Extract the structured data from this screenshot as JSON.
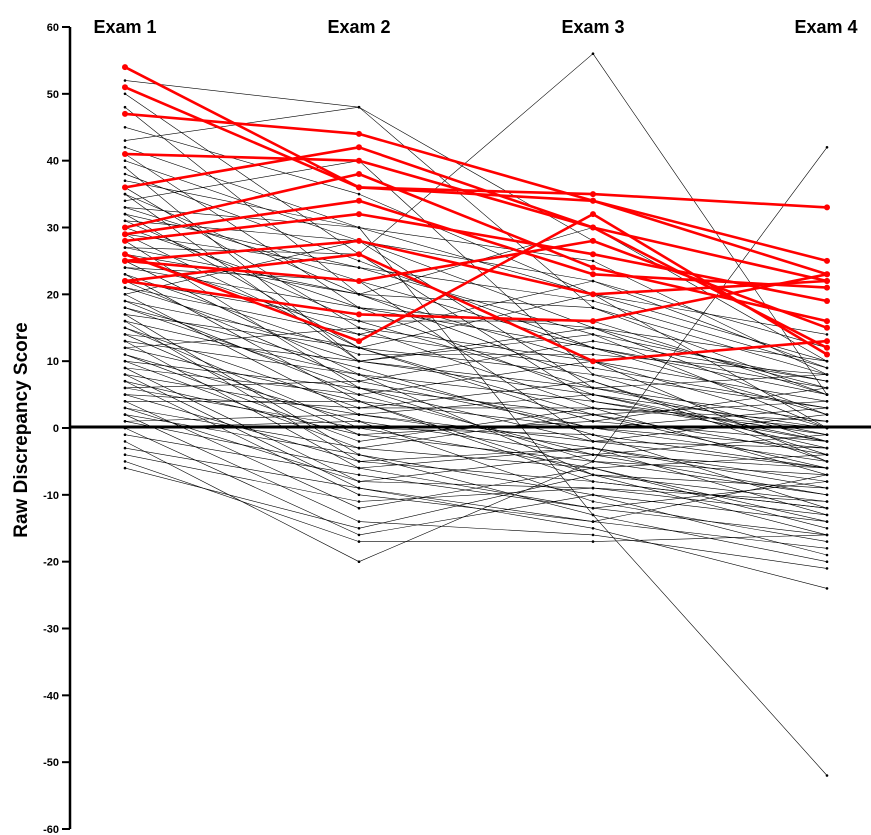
{
  "chart_data": {
    "type": "line",
    "title": "",
    "xlabel": "",
    "ylabel": "Raw Discrepancy Score",
    "categories": [
      "Exam 1",
      "Exam 2",
      "Exam 3",
      "Exam 4"
    ],
    "ylim": [
      -60,
      60
    ],
    "yticks": [
      60,
      50,
      40,
      30,
      20,
      10,
      0,
      -10,
      -20,
      -30,
      -40,
      -50,
      -60
    ],
    "zero_line": true,
    "grid": false,
    "legend": "none",
    "colors": {
      "highlight": "#ff0000",
      "normal": "#000000"
    },
    "highlighted_series": [
      {
        "values": [
          54,
          36,
          34,
          23
        ]
      },
      {
        "values": [
          51,
          36,
          35,
          33
        ]
      },
      {
        "values": [
          47,
          44,
          34,
          25
        ]
      },
      {
        "values": [
          41,
          40,
          30,
          22
        ]
      },
      {
        "values": [
          36,
          42,
          30,
          12
        ]
      },
      {
        "values": [
          30,
          38,
          24,
          16
        ]
      },
      {
        "values": [
          29,
          34,
          23,
          21
        ]
      },
      {
        "values": [
          28,
          32,
          26,
          19
        ]
      },
      {
        "values": [
          26,
          13,
          32,
          11
        ]
      },
      {
        "values": [
          25,
          28,
          20,
          22
        ]
      },
      {
        "values": [
          25,
          22,
          28,
          15
        ]
      },
      {
        "values": [
          22,
          26,
          10,
          13
        ]
      },
      {
        "values": [
          22,
          17,
          16,
          23
        ]
      }
    ],
    "other_series": [
      {
        "values": [
          52,
          48,
          28,
          15
        ]
      },
      {
        "values": [
          50,
          26,
          56,
          5
        ]
      },
      {
        "values": [
          48,
          20,
          30,
          10
        ]
      },
      {
        "values": [
          45,
          35,
          20,
          0
        ]
      },
      {
        "values": [
          43,
          48,
          18,
          5
        ]
      },
      {
        "values": [
          42,
          30,
          25,
          8
        ]
      },
      {
        "values": [
          41,
          18,
          15,
          2
        ]
      },
      {
        "values": [
          40,
          28,
          22,
          12
        ]
      },
      {
        "values": [
          39,
          10,
          5,
          -2
        ]
      },
      {
        "values": [
          38,
          25,
          12,
          6
        ]
      },
      {
        "values": [
          37,
          30,
          20,
          10
        ]
      },
      {
        "values": [
          36,
          15,
          10,
          -5
        ]
      },
      {
        "values": [
          35,
          20,
          18,
          8
        ]
      },
      {
        "values": [
          34,
          40,
          8,
          3
        ]
      },
      {
        "values": [
          33,
          22,
          12,
          5
        ]
      },
      {
        "values": [
          32,
          12,
          2,
          -6
        ]
      },
      {
        "values": [
          31,
          28,
          15,
          10
        ]
      },
      {
        "values": [
          30,
          18,
          5,
          0
        ]
      },
      {
        "values": [
          29,
          24,
          14,
          7
        ]
      },
      {
        "values": [
          28,
          6,
          -5,
          -10
        ]
      },
      {
        "values": [
          27,
          20,
          10,
          4
        ]
      },
      {
        "values": [
          26,
          14,
          22,
          9
        ]
      },
      {
        "values": [
          25,
          8,
          0,
          -3
        ]
      },
      {
        "values": [
          24,
          18,
          12,
          2
        ]
      },
      {
        "values": [
          23,
          4,
          -8,
          -12
        ]
      },
      {
        "values": [
          22,
          16,
          6,
          1
        ]
      },
      {
        "values": [
          21,
          10,
          15,
          6
        ]
      },
      {
        "values": [
          20,
          2,
          -3,
          -8
        ]
      },
      {
        "values": [
          19,
          12,
          8,
          -2
        ]
      },
      {
        "values": [
          18,
          6,
          2,
          4
        ]
      },
      {
        "values": [
          17,
          -4,
          -10,
          -14
        ]
      },
      {
        "values": [
          16,
          8,
          4,
          -1
        ]
      },
      {
        "values": [
          15,
          0,
          -6,
          -4
        ]
      },
      {
        "values": [
          14,
          10,
          6,
          8
        ]
      },
      {
        "values": [
          13,
          -6,
          -12,
          -16
        ]
      },
      {
        "values": [
          12,
          4,
          0,
          -5
        ]
      },
      {
        "values": [
          11,
          -2,
          3,
          -7
        ]
      },
      {
        "values": [
          10,
          6,
          -2,
          2
        ]
      },
      {
        "values": [
          9,
          -8,
          -4,
          -10
        ]
      },
      {
        "values": [
          8,
          2,
          5,
          -3
        ]
      },
      {
        "values": [
          7,
          -10,
          -14,
          -18
        ]
      },
      {
        "values": [
          6,
          0,
          -1,
          -6
        ]
      },
      {
        "values": [
          5,
          -5,
          -8,
          -12
        ]
      },
      {
        "values": [
          4,
          -12,
          -6,
          -15
        ]
      },
      {
        "values": [
          3,
          -3,
          2,
          -4
        ]
      },
      {
        "values": [
          2,
          -14,
          -16,
          -21
        ]
      },
      {
        "values": [
          1,
          -6,
          -3,
          -9
        ]
      },
      {
        "values": [
          0,
          -16,
          -10,
          -19
        ]
      },
      {
        "values": [
          -1,
          -7,
          -12,
          -8
        ]
      },
      {
        "values": [
          -2,
          -20,
          -5,
          42
        ]
      },
      {
        "values": [
          -3,
          -9,
          -15,
          -24
        ]
      },
      {
        "values": [
          -4,
          -11,
          -9,
          -13
        ]
      },
      {
        "values": [
          -5,
          -17,
          -17,
          -16
        ]
      },
      {
        "values": [
          -6,
          -15,
          -7,
          -11
        ]
      },
      {
        "values": [
          35,
          10,
          14,
          0
        ]
      },
      {
        "values": [
          33,
          30,
          -13,
          -52
        ]
      },
      {
        "values": [
          27,
          26,
          4,
          -2
        ]
      },
      {
        "values": [
          24,
          22,
          -2,
          -6
        ]
      },
      {
        "values": [
          21,
          14,
          9,
          3
        ]
      },
      {
        "values": [
          19,
          5,
          -4,
          -1
        ]
      },
      {
        "values": [
          17,
          12,
          1,
          6
        ]
      },
      {
        "values": [
          15,
          3,
          7,
          -5
        ]
      },
      {
        "values": [
          13,
          8,
          -7,
          -9
        ]
      },
      {
        "values": [
          11,
          1,
          -11,
          -17
        ]
      },
      {
        "values": [
          9,
          5,
          10,
          0
        ]
      },
      {
        "values": [
          7,
          -1,
          -5,
          -7
        ]
      },
      {
        "values": [
          5,
          3,
          3,
          1
        ]
      },
      {
        "values": [
          3,
          -8,
          -9,
          -11
        ]
      },
      {
        "values": [
          1,
          2,
          -2,
          -3
        ]
      },
      {
        "values": [
          31,
          16,
          16,
          5
        ]
      },
      {
        "values": [
          29,
          12,
          20,
          14
        ]
      },
      {
        "values": [
          26,
          20,
          7,
          -4
        ]
      },
      {
        "values": [
          23,
          11,
          11,
          8
        ]
      },
      {
        "values": [
          18,
          9,
          -1,
          -12
        ]
      },
      {
        "values": [
          14,
          -1,
          1,
          -2
        ]
      },
      {
        "values": [
          10,
          -3,
          -6,
          -14
        ]
      },
      {
        "values": [
          6,
          7,
          0,
          3
        ]
      },
      {
        "values": [
          2,
          -4,
          -13,
          -20
        ]
      },
      {
        "values": [
          0,
          1,
          -4,
          -6
        ]
      },
      {
        "values": [
          32,
          24,
          19,
          9
        ]
      },
      {
        "values": [
          20,
          28,
          6,
          -1
        ]
      },
      {
        "values": [
          12,
          15,
          3,
          0
        ]
      },
      {
        "values": [
          8,
          -9,
          -14,
          -7
        ]
      },
      {
        "values": [
          4,
          4,
          -7,
          -16
        ]
      },
      {
        "values": [
          16,
          -5,
          -3,
          -13
        ]
      },
      {
        "values": [
          22,
          7,
          13,
          7
        ]
      }
    ]
  }
}
